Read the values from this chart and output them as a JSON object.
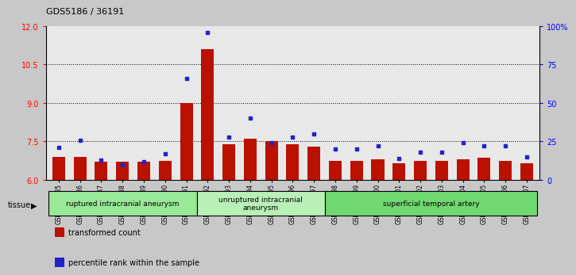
{
  "title": "GDS5186 / 36191",
  "samples": [
    "GSM1306885",
    "GSM1306886",
    "GSM1306887",
    "GSM1306888",
    "GSM1306889",
    "GSM1306890",
    "GSM1306891",
    "GSM1306892",
    "GSM1306893",
    "GSM1306894",
    "GSM1306895",
    "GSM1306896",
    "GSM1306897",
    "GSM1306898",
    "GSM1306899",
    "GSM1306900",
    "GSM1306901",
    "GSM1306902",
    "GSM1306903",
    "GSM1306904",
    "GSM1306905",
    "GSM1306906",
    "GSM1306907"
  ],
  "transformed_count": [
    6.9,
    6.9,
    6.7,
    6.7,
    6.7,
    6.75,
    9.0,
    11.1,
    7.4,
    7.6,
    7.5,
    7.4,
    7.3,
    6.75,
    6.75,
    6.8,
    6.65,
    6.75,
    6.75,
    6.8,
    6.85,
    6.75,
    6.65
  ],
  "percentile_rank": [
    21,
    26,
    13,
    10,
    12,
    17,
    66,
    96,
    28,
    40,
    24,
    28,
    30,
    20,
    20,
    22,
    14,
    18,
    18,
    24,
    22,
    22,
    15
  ],
  "groups": [
    {
      "label": "ruptured intracranial aneurysm",
      "start": 0,
      "end": 7,
      "color": "#98e898"
    },
    {
      "label": "unruptured intracranial\naneurysm",
      "start": 7,
      "end": 13,
      "color": "#b8f0b8"
    },
    {
      "label": "superficial temporal artery",
      "start": 13,
      "end": 23,
      "color": "#70d870"
    }
  ],
  "ylim_left": [
    6,
    12
  ],
  "ylim_right": [
    0,
    100
  ],
  "yticks_left": [
    6,
    7.5,
    9,
    10.5,
    12
  ],
  "yticks_right": [
    0,
    25,
    50,
    75,
    100
  ],
  "ytick_labels_right": [
    "0",
    "25",
    "50",
    "75",
    "100%"
  ],
  "bar_color": "#bb1100",
  "dot_color": "#2222cc",
  "bg_color": "#c8c8c8",
  "plot_bg": "#e8e8e8",
  "grid_color": "#000000"
}
